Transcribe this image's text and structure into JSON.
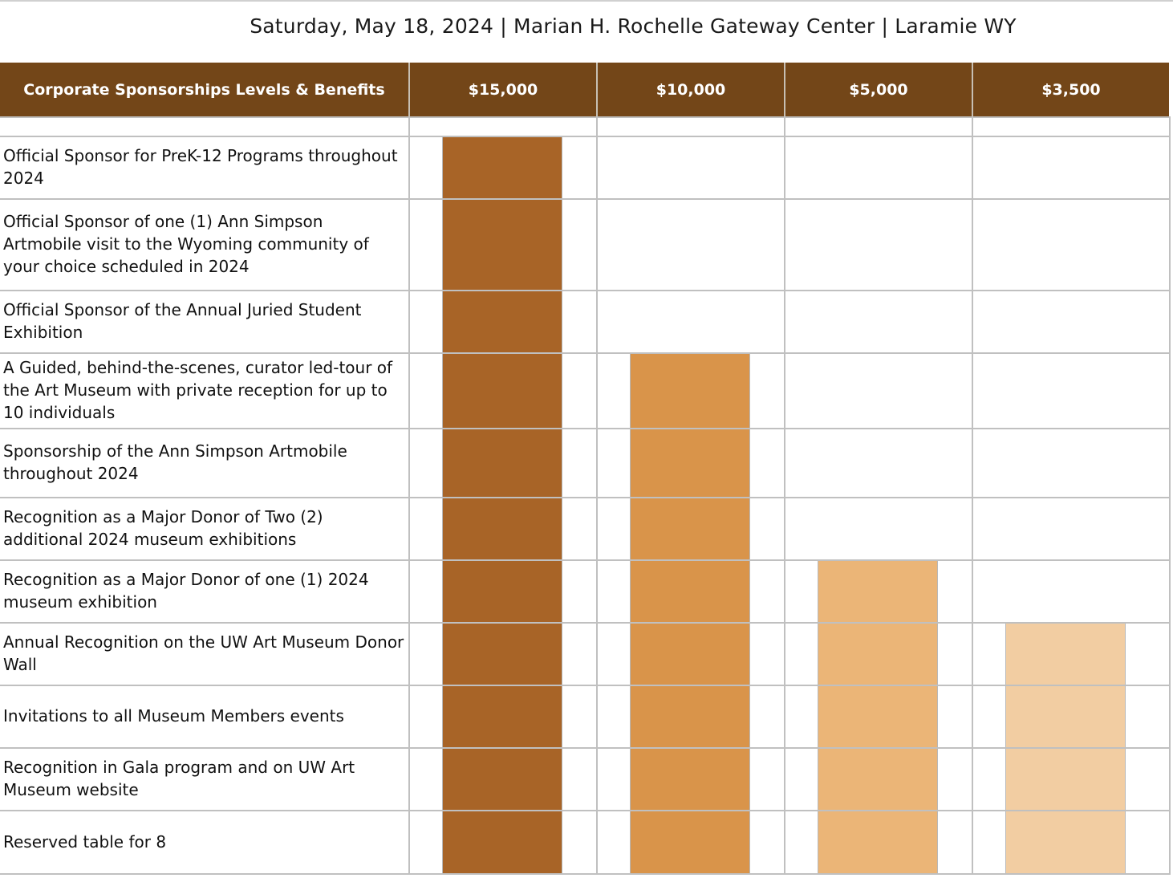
{
  "event_line": "Saturday, May 18, 2024 | Marian H. Rochelle Gateway Center | Laramie WY",
  "table": {
    "header_label": "Corporate Sponsorships Levels & Benefits",
    "levels": [
      {
        "label": "$15,000",
        "color": "#A86427"
      },
      {
        "label": "$10,000",
        "color": "#D9944A"
      },
      {
        "label": "$5,000",
        "color": "#EBB577"
      },
      {
        "label": "$3,500",
        "color": "#F2CDA2"
      }
    ],
    "benefits": [
      {
        "label": "Official Sponsor for PreK-12 Programs throughout 2024",
        "included": [
          true,
          false,
          false,
          false
        ]
      },
      {
        "label": "Official Sponsor of one (1) Ann Simpson Artmobile visit to the Wyoming community of your choice scheduled in 2024",
        "included": [
          true,
          false,
          false,
          false
        ]
      },
      {
        "label": "Official Sponsor of the Annual Juried Student Exhibition",
        "included": [
          true,
          false,
          false,
          false
        ]
      },
      {
        "label": "A Guided, behind-the-scenes, curator led-tour of the Art Museum with private reception for up to 10 individuals",
        "included": [
          true,
          true,
          false,
          false
        ]
      },
      {
        "label": "Sponsorship of the Ann Simpson Artmobile throughout 2024",
        "included": [
          true,
          true,
          false,
          false
        ]
      },
      {
        "label": "Recognition as a Major Donor of Two (2) additional 2024 museum exhibitions",
        "included": [
          true,
          true,
          false,
          false
        ]
      },
      {
        "label": "Recognition as a Major Donor of one (1) 2024 museum exhibition",
        "included": [
          true,
          true,
          true,
          false
        ]
      },
      {
        "label": "Annual Recognition on the UW Art Museum Donor Wall",
        "included": [
          true,
          true,
          true,
          true
        ]
      },
      {
        "label": "Invitations to all Museum Members events",
        "included": [
          true,
          true,
          true,
          true
        ]
      },
      {
        "label": "Recognition in Gala program and on UW Art Museum website",
        "included": [
          true,
          true,
          true,
          true
        ]
      },
      {
        "label": "Reserved table for 8",
        "included": [
          true,
          true,
          true,
          true
        ]
      }
    ]
  }
}
